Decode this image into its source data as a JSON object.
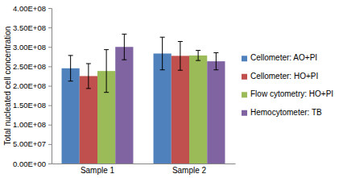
{
  "chart_data": {
    "type": "bar",
    "y_label": "Total nucleated cell concentration",
    "categories": [
      "Sample 1",
      "Sample 2"
    ],
    "series": [
      {
        "name": "Cellometer: AO+PI",
        "color": "#4f81bd",
        "values": [
          245000000,
          283000000
        ],
        "errors": [
          33000000,
          42000000
        ]
      },
      {
        "name": "Cellometer: HO+PI",
        "color": "#c0504d",
        "values": [
          225000000,
          277000000
        ],
        "errors": [
          32000000,
          37000000
        ]
      },
      {
        "name": "Flow cytometry: HO+PI",
        "color": "#9bbb59",
        "values": [
          238000000,
          278000000
        ],
        "errors": [
          55000000,
          13000000
        ]
      },
      {
        "name": "Hemocytometer: TB",
        "color": "#8064a2",
        "values": [
          300000000,
          263000000
        ],
        "errors": [
          33000000,
          22000000
        ]
      }
    ],
    "ylim": [
      0,
      400000000
    ],
    "yticks": [
      {
        "value": 0,
        "label": "0.00E+00"
      },
      {
        "value": 50000000,
        "label": "5.00E+07"
      },
      {
        "value": 100000000,
        "label": "1.00E+08"
      },
      {
        "value": 150000000,
        "label": "1.50E+08"
      },
      {
        "value": 200000000,
        "label": "2.00E+08"
      },
      {
        "value": 250000000,
        "label": "2.50E+08"
      },
      {
        "value": 300000000,
        "label": "3.00E+08"
      },
      {
        "value": 350000000,
        "label": "3.50E+08"
      },
      {
        "value": 400000000,
        "label": "4.00E+08"
      }
    ],
    "grid": false,
    "legend": "right"
  }
}
